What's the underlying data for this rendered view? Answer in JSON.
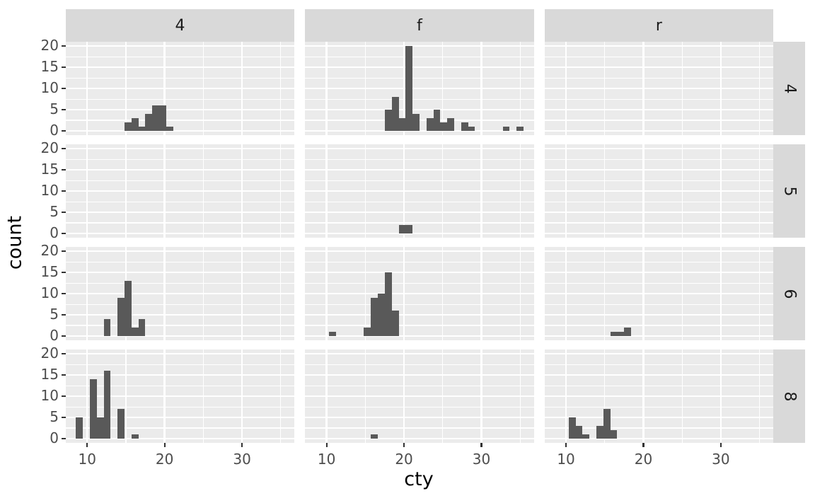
{
  "axes": {
    "x_title": "cty",
    "y_title": "count",
    "x_major_ticks": [
      10,
      20,
      30
    ],
    "x_minor_ticks": [
      15,
      25,
      35
    ],
    "y_major_ticks": [
      0,
      5,
      10,
      15,
      20
    ],
    "y_minor_ticks": [
      2.5,
      7.5,
      12.5,
      17.5
    ],
    "x_tick_labels": [
      "10",
      "20",
      "30"
    ],
    "y_tick_labels": [
      "0",
      "5",
      "10",
      "15",
      "20"
    ]
  },
  "facets": {
    "col_labels": [
      "4",
      "f",
      "r"
    ],
    "row_labels": [
      "4",
      "5",
      "6",
      "8"
    ]
  },
  "colors": {
    "bar_fill": "#595959",
    "panel_background": "#EBEBEB",
    "strip_background": "#D9D9D9",
    "gridline": "#FFFFFF",
    "tick_mark": "#333333",
    "tick_label": "#4D4D4D",
    "strip_text": "#1A1A1A",
    "axis_title": "#000000"
  },
  "chart_data": {
    "type": "bar",
    "subtype": "faceted-histogram",
    "x_variable": "cty",
    "y_variable": "count",
    "facet_columns_variable_values": [
      "4",
      "f",
      "r"
    ],
    "facet_rows_variable_values": [
      "4",
      "5",
      "6",
      "8"
    ],
    "bin_width": 0.896552,
    "bin_origin": 8.551724,
    "x_range_shown": [
      7.207,
      36.793
    ],
    "y_range_shown": [
      -1,
      21
    ],
    "grid": "major-and-minor, white on grey panel",
    "panels": [
      {
        "col": "4",
        "row": "4",
        "x": [
          15,
          16,
          17,
          18,
          19,
          20,
          21
        ],
        "counts": [
          2,
          3,
          1,
          4,
          6,
          6,
          1
        ]
      },
      {
        "col": "f",
        "row": "4",
        "x": [
          18,
          19,
          20,
          21,
          22,
          23,
          24,
          25,
          26,
          28,
          29,
          33,
          35
        ],
        "counts": [
          5,
          8,
          3,
          20,
          4,
          3,
          5,
          2,
          3,
          2,
          1,
          1,
          1
        ]
      },
      {
        "col": "r",
        "row": "4",
        "x": [],
        "counts": []
      },
      {
        "col": "4",
        "row": "5",
        "x": [],
        "counts": []
      },
      {
        "col": "f",
        "row": "5",
        "x": [
          20,
          21
        ],
        "counts": [
          2,
          2
        ]
      },
      {
        "col": "r",
        "row": "5",
        "x": [],
        "counts": []
      },
      {
        "col": "4",
        "row": "6",
        "x": [
          13,
          14,
          15,
          16,
          17
        ],
        "counts": [
          4,
          9,
          13,
          2,
          4
        ]
      },
      {
        "col": "f",
        "row": "6",
        "x": [
          11,
          15,
          16,
          17,
          18,
          19
        ],
        "counts": [
          1,
          2,
          9,
          10,
          15,
          6
        ]
      },
      {
        "col": "r",
        "row": "6",
        "x": [
          16,
          17,
          18
        ],
        "counts": [
          1,
          1,
          2
        ]
      },
      {
        "col": "4",
        "row": "8",
        "x": [
          9,
          11,
          12,
          13,
          14,
          16
        ],
        "counts": [
          5,
          14,
          5,
          16,
          7,
          1
        ]
      },
      {
        "col": "f",
        "row": "8",
        "x": [
          16
        ],
        "counts": [
          1
        ]
      },
      {
        "col": "r",
        "row": "8",
        "x": [
          11,
          12,
          13,
          14,
          15,
          16
        ],
        "counts": [
          5,
          3,
          1,
          3,
          7,
          2
        ]
      }
    ]
  }
}
